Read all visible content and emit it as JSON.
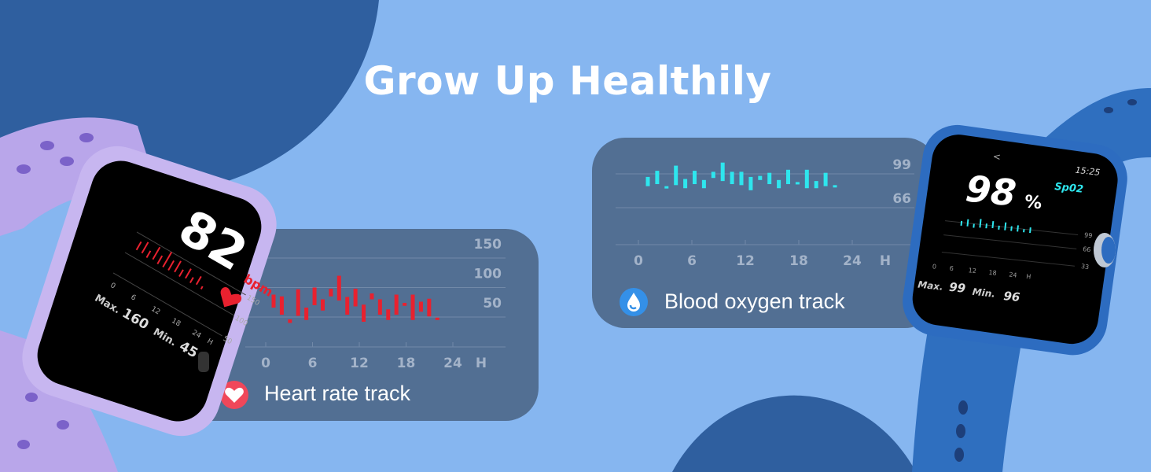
{
  "title": "Grow Up Healthily",
  "colors": {
    "background": "#86b6f0",
    "blob": "#2f5f9f",
    "panel": "#526f93",
    "heart_bar": "#e8212f",
    "oxygen_bar": "#2ee6ee",
    "axis_text": "#a3b3c9"
  },
  "heart_rate": {
    "caption": "Heart rate track",
    "icon": "heart-icon",
    "chart_data": {
      "type": "bar",
      "subtype": "range",
      "xlabel": "H",
      "x_ticks": [
        "0",
        "6",
        "12",
        "18",
        "24"
      ],
      "y_ticks": [
        "150",
        "100",
        "50"
      ],
      "xlim": [
        0,
        24
      ],
      "grid": true,
      "hours": [
        1,
        2,
        3,
        4,
        5,
        6,
        7,
        8,
        9,
        10,
        11,
        12,
        13,
        14,
        15,
        16,
        17,
        18,
        19,
        20,
        21
      ],
      "ranges": [
        [
          66,
          88
        ],
        [
          54,
          85
        ],
        [
          40,
          46
        ],
        [
          52,
          97
        ],
        [
          45,
          66
        ],
        [
          70,
          100
        ],
        [
          61,
          80
        ],
        [
          85,
          98
        ],
        [
          78,
          120
        ],
        [
          54,
          84
        ],
        [
          68,
          98
        ],
        [
          42,
          71
        ],
        [
          80,
          90
        ],
        [
          54,
          80
        ],
        [
          45,
          63
        ],
        [
          54,
          88
        ],
        [
          69,
          74
        ],
        [
          45,
          88
        ],
        [
          59,
          76
        ],
        [
          51,
          81
        ],
        [
          45,
          49
        ]
      ]
    }
  },
  "blood_oxygen": {
    "caption": "Blood oxygen track",
    "icon": "water-drop-icon",
    "chart_data": {
      "type": "bar",
      "subtype": "range",
      "xlabel": "H",
      "x_ticks": [
        "0",
        "6",
        "12",
        "18",
        "24"
      ],
      "y_ticks": [
        "99",
        "66"
      ],
      "xlim": [
        0,
        24
      ],
      "grid": true,
      "hours": [
        1,
        2,
        3,
        4,
        5,
        6,
        7,
        8,
        9,
        10,
        11,
        12,
        13,
        14,
        15,
        16,
        17,
        18,
        19,
        20,
        21
      ],
      "ranges": [
        [
          87,
          96
        ],
        [
          89,
          102
        ],
        [
          86,
          87
        ],
        [
          88,
          107
        ],
        [
          85,
          94
        ],
        [
          89,
          102
        ],
        [
          85,
          93
        ],
        [
          95,
          101
        ],
        [
          92,
          110
        ],
        [
          89,
          101
        ],
        [
          88,
          101
        ],
        [
          83,
          96
        ],
        [
          93,
          97
        ],
        [
          89,
          100
        ],
        [
          85,
          93
        ],
        [
          89,
          103
        ],
        [
          89,
          91
        ],
        [
          85,
          103
        ],
        [
          85,
          92
        ],
        [
          87,
          100
        ],
        [
          86,
          88
        ]
      ]
    }
  },
  "left_watch": {
    "value": "82",
    "unit": "bpm",
    "y_ticks": [
      "150",
      "100",
      "50"
    ],
    "x_ticks": [
      "0",
      "6",
      "12",
      "18",
      "24",
      "H"
    ],
    "max_label": "Max.",
    "max_value": "160",
    "min_label": "Min.",
    "min_value": "45"
  },
  "right_watch": {
    "time": "15:25",
    "back": "<",
    "value": "98",
    "percent": "%",
    "label": "Sp02",
    "y_ticks": [
      "99",
      "66",
      "33"
    ],
    "x_ticks": [
      "0",
      "6",
      "12",
      "18",
      "24",
      "H"
    ],
    "max_label": "Max.",
    "max_value": "99",
    "min_label": "Min.",
    "min_value": "96"
  }
}
